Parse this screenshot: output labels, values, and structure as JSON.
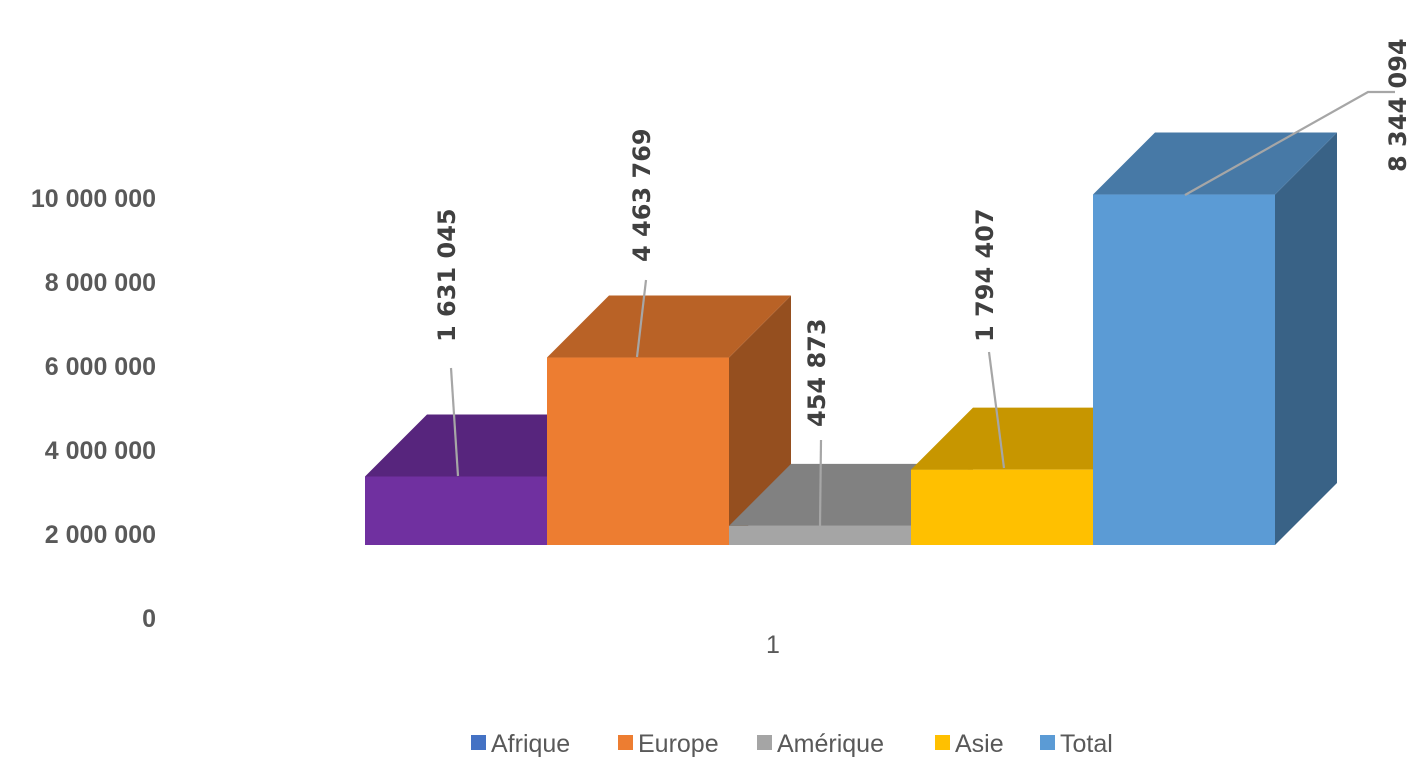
{
  "chart_data": {
    "type": "bar",
    "style": "3d-clustered-column",
    "categories": [
      "1"
    ],
    "series": [
      {
        "name": "Afrique",
        "values": [
          1631045
        ],
        "color": "#7030A0",
        "legend_color": "#4472C4"
      },
      {
        "name": "Europe",
        "values": [
          4463769
        ],
        "color": "#ED7D31",
        "legend_color": "#ED7D31"
      },
      {
        "name": "Amérique",
        "values": [
          454873
        ],
        "color": "#A5A5A5",
        "legend_color": "#A5A5A5"
      },
      {
        "name": "Asie",
        "values": [
          1794407
        ],
        "color": "#FFC000",
        "legend_color": "#FFC000"
      },
      {
        "name": "Total",
        "values": [
          8344094
        ],
        "color": "#5B9BD5",
        "legend_color": "#5B9BD5"
      }
    ],
    "data_labels": [
      "1 631 045",
      "4 463 769",
      "454 873",
      "1 794 407",
      "8 344 094"
    ],
    "yticks": [
      "0",
      "2 000 000",
      "4 000 000",
      "6 000 000",
      "8 000 000",
      "10 000 000"
    ],
    "ylim": [
      0,
      10000000
    ],
    "title": "",
    "xlabel": "",
    "ylabel": "",
    "grid": false,
    "legend": "bottom"
  }
}
